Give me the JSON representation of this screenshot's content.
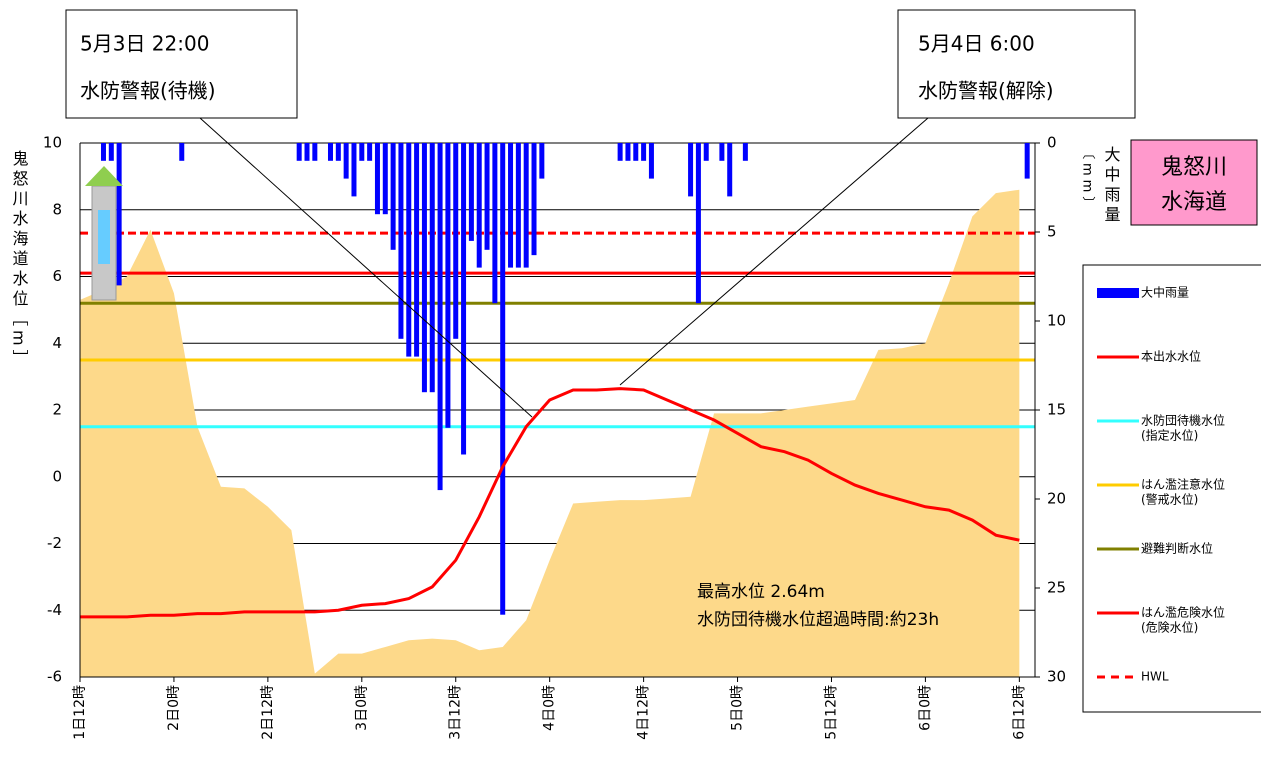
{
  "chart_data": {
    "type": "line",
    "y_label": "鬼怒川水海道水位［m］",
    "y2_label": "大中雨量",
    "y2_unit": "〔mm〕",
    "station": [
      "鬼怒川",
      "水海道"
    ],
    "xlim": [
      0,
      122
    ],
    "xticks": [
      {
        "value": 0,
        "label": "1日12時"
      },
      {
        "value": 12,
        "label": "2日0時"
      },
      {
        "value": 24,
        "label": "2日12時"
      },
      {
        "value": 36,
        "label": "3日0時"
      },
      {
        "value": 48,
        "label": "3日12時"
      },
      {
        "value": 60,
        "label": "4日0時"
      },
      {
        "value": 72,
        "label": "4日12時"
      },
      {
        "value": 84,
        "label": "5日0時"
      },
      {
        "value": 96,
        "label": "5日12時"
      },
      {
        "value": 108,
        "label": "6日0時"
      },
      {
        "value": 120,
        "label": "6日12時"
      }
    ],
    "ylim": [
      -6,
      10
    ],
    "yticks": [
      -6,
      -4,
      -2,
      0,
      2,
      4,
      6,
      8,
      10
    ],
    "y2lim": [
      0,
      30
    ],
    "y2ticks": [
      0,
      5,
      10,
      15,
      20,
      25,
      30
    ],
    "grid": true,
    "series": [
      {
        "type": "area",
        "color": "#fdd98a",
        "x": [
          0,
          3,
          6,
          9,
          12,
          15,
          18,
          21,
          24,
          27,
          30,
          33,
          36,
          39,
          42,
          45,
          48,
          51,
          54,
          57,
          60,
          63,
          66,
          69,
          72,
          75,
          78,
          81,
          84,
          87,
          90,
          93,
          96,
          99,
          102,
          105,
          108,
          111,
          114,
          117,
          120
        ],
        "values": [
          5.3,
          5.6,
          6.0,
          7.4,
          5.5,
          1.5,
          -0.3,
          -0.35,
          -0.9,
          -1.6,
          -5.9,
          -5.3,
          -5.3,
          -5.1,
          -4.9,
          -4.85,
          -4.9,
          -5.2,
          -5.1,
          -4.3,
          -2.5,
          -0.8,
          -0.75,
          -0.7,
          -0.7,
          -0.65,
          -0.6,
          1.9,
          1.9,
          1.9,
          2.0,
          2.1,
          2.2,
          2.3,
          3.8,
          3.85,
          4.0,
          5.8,
          7.8,
          8.5,
          8.6
        ]
      },
      {
        "name": "大中雨量",
        "type": "bar",
        "axis": "y2",
        "color": "#0000ff",
        "x": [
          3,
          4,
          5,
          13,
          28,
          29,
          30,
          32,
          33,
          34,
          35,
          36,
          37,
          38,
          39,
          40,
          41,
          42,
          43,
          44,
          45,
          46,
          47,
          48,
          49,
          50,
          51,
          52,
          53,
          54,
          55,
          56,
          57,
          58,
          59,
          69,
          70,
          71,
          72,
          73,
          78,
          79,
          80,
          82,
          83,
          85,
          121
        ],
        "values": [
          1,
          1,
          8,
          1,
          1,
          1,
          1,
          1,
          1,
          2,
          3,
          1,
          1,
          4,
          4,
          6,
          11,
          12,
          12,
          14,
          14,
          19.5,
          16,
          11,
          17.5,
          5.5,
          7,
          6,
          9,
          26.5,
          7,
          7,
          7,
          6.3,
          2,
          1,
          1,
          1,
          1,
          2,
          3,
          9,
          1,
          1,
          3,
          1,
          2
        ]
      },
      {
        "name": "本出水水位",
        "type": "line",
        "color": "#ff0000",
        "x": [
          0,
          3,
          6,
          9,
          12,
          15,
          18,
          21,
          24,
          27,
          30,
          33,
          36,
          39,
          42,
          45,
          48,
          51,
          54,
          57,
          60,
          63,
          66,
          69,
          72,
          75,
          78,
          81,
          84,
          87,
          90,
          93,
          96,
          99,
          102,
          105,
          108,
          111,
          114,
          117,
          120
        ],
        "values": [
          -4.2,
          -4.2,
          -4.2,
          -4.15,
          -4.15,
          -4.1,
          -4.1,
          -4.05,
          -4.05,
          -4.05,
          -4.05,
          -4.0,
          -3.85,
          -3.8,
          -3.65,
          -3.3,
          -2.5,
          -1.2,
          0.3,
          1.5,
          2.3,
          2.6,
          2.6,
          2.64,
          2.6,
          2.3,
          2.0,
          1.7,
          1.3,
          0.9,
          0.75,
          0.5,
          0.1,
          -0.25,
          -0.5,
          -0.7,
          -0.9,
          -1.0,
          -1.3,
          -1.75,
          -1.9
        ]
      },
      {
        "name": "水防団待機水位",
        "note": "(指定水位)",
        "type": "hline",
        "color": "#33ffff",
        "values": [
          1.5
        ]
      },
      {
        "name": "はん濫注意水位",
        "note": "(警戒水位)",
        "type": "hline",
        "color": "#ffcc00",
        "values": [
          3.5
        ]
      },
      {
        "name": "避難判断水位",
        "type": "hline",
        "color": "#808000",
        "values": [
          5.2
        ]
      },
      {
        "name": "はん濫危険水位",
        "note": "(危険水位)",
        "type": "hline",
        "color": "#ff0000",
        "values": [
          6.1
        ]
      },
      {
        "name": "HWL",
        "type": "hline",
        "color": "#ff0000",
        "dash": true,
        "values": [
          7.3
        ]
      }
    ],
    "callouts": [
      {
        "lines": [
          "5月3日 22:00",
          "水防警報(待機)"
        ]
      },
      {
        "lines": [
          "5月4日 6:00",
          "水防警報(解除)"
        ]
      }
    ],
    "annotations": [
      "最高水位  2.64m",
      "水防団待機水位超過時間:約23h"
    ]
  }
}
